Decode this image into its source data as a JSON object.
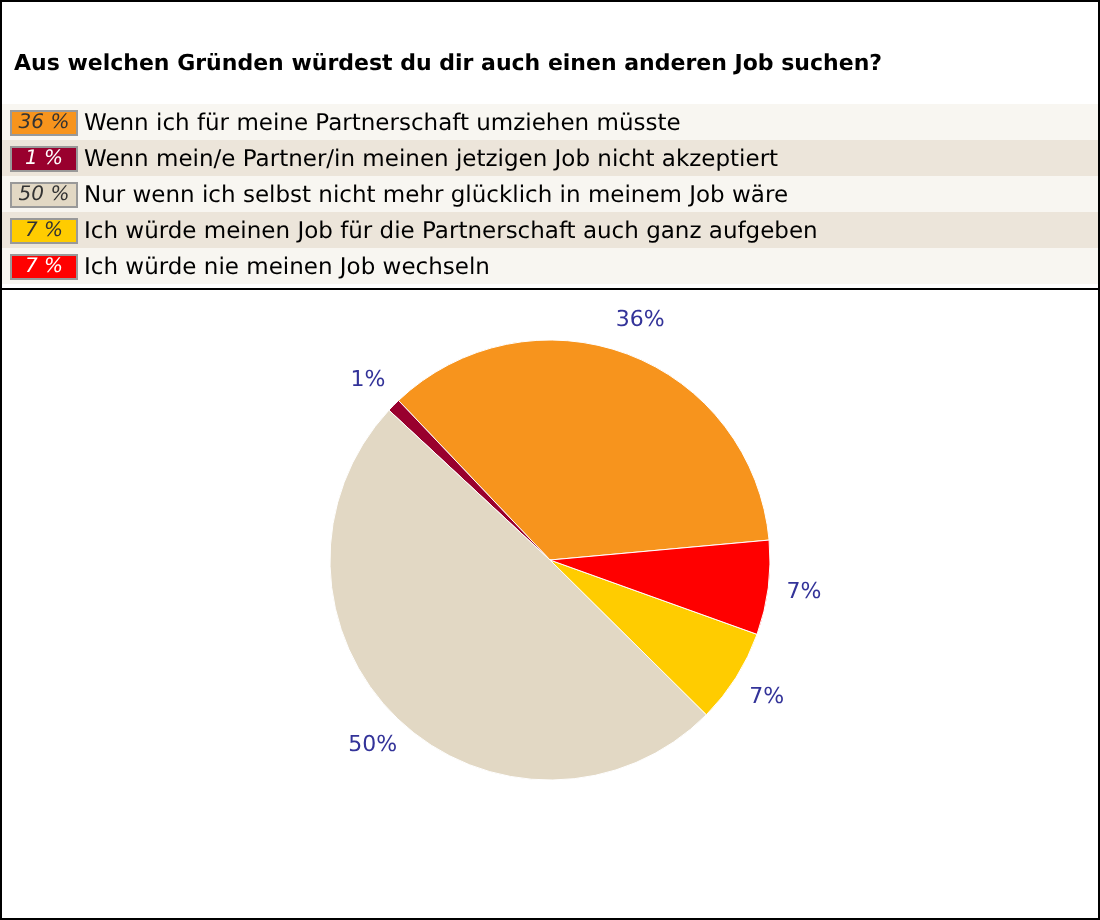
{
  "chart_data": {
    "type": "pie",
    "title": "Aus welchen Gründen würdest du dir auch einen anderen Job suchen?",
    "categories": [
      "Wenn ich für meine Partnerschaft umziehen müsste",
      "Wenn mein/e Partner/in meinen jetzigen Job nicht akzeptiert",
      "Nur wenn ich selbst nicht mehr glücklich in meinem Job wäre",
      "Ich würde meinen Job für die Partnerschaft auch ganz aufgeben",
      "Ich würde nie meinen Job wechseln"
    ],
    "values": [
      36,
      1,
      50,
      7,
      7
    ],
    "colors": [
      "#f7941d",
      "#99002e",
      "#e2d8c4",
      "#ffcc00",
      "#ff0000"
    ],
    "value_labels": [
      "36%",
      "1%",
      "50%",
      "7%",
      "7%"
    ],
    "annotations": [
      "36 %",
      "1 %",
      "50 %",
      "7 %",
      "7 %"
    ],
    "legend": "top"
  }
}
